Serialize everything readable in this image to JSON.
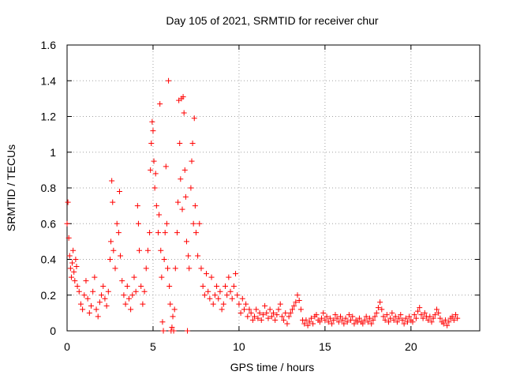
{
  "chart_data": {
    "type": "scatter",
    "title": "Day 105 of 2021, SRMTID for receiver chur",
    "xlabel": "GPS time / hours",
    "ylabel": "SRMTID / TECUs",
    "xlim": [
      0,
      24
    ],
    "ylim": [
      0,
      1.6
    ],
    "x_ticks": [
      0,
      5,
      10,
      15,
      20
    ],
    "x_tick_labels": [
      "0",
      "5",
      "10",
      "15",
      "20"
    ],
    "y_ticks": [
      0,
      0.2,
      0.4,
      0.6,
      0.8,
      1,
      1.2,
      1.4,
      1.6
    ],
    "y_tick_labels": [
      "0",
      "0.2",
      "0.4",
      "0.6",
      "0.8",
      "1",
      "1.2",
      "1.4",
      "1.6"
    ],
    "grid": true,
    "marker": "plus",
    "color": "#ff0000",
    "series": [
      {
        "name": "SRMTID",
        "points": [
          [
            0.0,
            0.6
          ],
          [
            0.05,
            0.72
          ],
          [
            0.1,
            0.52
          ],
          [
            0.15,
            0.42
          ],
          [
            0.2,
            0.35
          ],
          [
            0.25,
            0.3
          ],
          [
            0.3,
            0.38
          ],
          [
            0.35,
            0.45
          ],
          [
            0.4,
            0.33
          ],
          [
            0.45,
            0.28
          ],
          [
            0.5,
            0.4
          ],
          [
            0.55,
            0.36
          ],
          [
            0.6,
            0.25
          ],
          [
            0.7,
            0.22
          ],
          [
            0.8,
            0.15
          ],
          [
            0.9,
            0.12
          ],
          [
            1.0,
            0.2
          ],
          [
            1.1,
            0.28
          ],
          [
            1.2,
            0.18
          ],
          [
            1.3,
            0.1
          ],
          [
            1.4,
            0.14
          ],
          [
            1.5,
            0.22
          ],
          [
            1.6,
            0.3
          ],
          [
            1.7,
            0.12
          ],
          [
            1.8,
            0.08
          ],
          [
            1.9,
            0.16
          ],
          [
            2.0,
            0.2
          ],
          [
            2.1,
            0.25
          ],
          [
            2.2,
            0.18
          ],
          [
            2.3,
            0.14
          ],
          [
            2.4,
            0.22
          ],
          [
            2.5,
            0.4
          ],
          [
            2.55,
            0.5
          ],
          [
            2.6,
            0.84
          ],
          [
            2.65,
            0.72
          ],
          [
            2.7,
            0.45
          ],
          [
            2.8,
            0.35
          ],
          [
            2.9,
            0.6
          ],
          [
            3.0,
            0.55
          ],
          [
            3.05,
            0.78
          ],
          [
            3.1,
            0.42
          ],
          [
            3.2,
            0.28
          ],
          [
            3.3,
            0.2
          ],
          [
            3.4,
            0.15
          ],
          [
            3.5,
            0.25
          ],
          [
            3.6,
            0.18
          ],
          [
            3.7,
            0.12
          ],
          [
            3.8,
            0.2
          ],
          [
            3.9,
            0.3
          ],
          [
            4.0,
            0.22
          ],
          [
            4.1,
            0.7
          ],
          [
            4.15,
            0.6
          ],
          [
            4.2,
            0.45
          ],
          [
            4.3,
            0.25
          ],
          [
            4.4,
            0.15
          ],
          [
            4.5,
            0.22
          ],
          [
            4.6,
            0.35
          ],
          [
            4.7,
            0.45
          ],
          [
            4.8,
            0.55
          ],
          [
            4.85,
            0.9
          ],
          [
            4.9,
            1.05
          ],
          [
            4.95,
            1.17
          ],
          [
            5.0,
            1.12
          ],
          [
            5.05,
            0.95
          ],
          [
            5.1,
            0.8
          ],
          [
            5.15,
            0.88
          ],
          [
            5.2,
            0.7
          ],
          [
            5.3,
            0.55
          ],
          [
            5.35,
            0.65
          ],
          [
            5.4,
            1.27
          ],
          [
            5.45,
            0.45
          ],
          [
            5.5,
            0.3
          ],
          [
            5.55,
            0.05
          ],
          [
            5.6,
            0.0
          ],
          [
            5.65,
            0.4
          ],
          [
            5.7,
            0.55
          ],
          [
            5.75,
            0.92
          ],
          [
            5.8,
            0.6
          ],
          [
            5.85,
            0.35
          ],
          [
            5.9,
            1.4
          ],
          [
            5.95,
            0.25
          ],
          [
            6.0,
            0.15
          ],
          [
            6.05,
            0.0
          ],
          [
            6.1,
            0.02
          ],
          [
            6.15,
            0.08
          ],
          [
            6.2,
            0.0
          ],
          [
            6.25,
            0.12
          ],
          [
            6.3,
            0.35
          ],
          [
            6.4,
            0.55
          ],
          [
            6.45,
            0.72
          ],
          [
            6.5,
            1.29
          ],
          [
            6.55,
            1.05
          ],
          [
            6.6,
            0.85
          ],
          [
            6.65,
            1.3
          ],
          [
            6.7,
            0.68
          ],
          [
            6.75,
            1.31
          ],
          [
            6.8,
            1.22
          ],
          [
            6.85,
            0.9
          ],
          [
            6.9,
            0.75
          ],
          [
            6.95,
            0.5
          ],
          [
            7.0,
            0.0
          ],
          [
            7.05,
            0.42
          ],
          [
            7.1,
            0.35
          ],
          [
            7.2,
            0.8
          ],
          [
            7.25,
            0.95
          ],
          [
            7.3,
            1.05
          ],
          [
            7.35,
            0.6
          ],
          [
            7.4,
            1.19
          ],
          [
            7.45,
            0.7
          ],
          [
            7.5,
            0.55
          ],
          [
            7.6,
            0.42
          ],
          [
            7.7,
            0.6
          ],
          [
            7.8,
            0.35
          ],
          [
            7.9,
            0.25
          ],
          [
            8.0,
            0.2
          ],
          [
            8.1,
            0.32
          ],
          [
            8.2,
            0.22
          ],
          [
            8.3,
            0.18
          ],
          [
            8.4,
            0.3
          ],
          [
            8.5,
            0.15
          ],
          [
            8.6,
            0.2
          ],
          [
            8.7,
            0.25
          ],
          [
            8.8,
            0.18
          ],
          [
            8.9,
            0.22
          ],
          [
            9.0,
            0.12
          ],
          [
            9.1,
            0.15
          ],
          [
            9.2,
            0.25
          ],
          [
            9.3,
            0.2
          ],
          [
            9.4,
            0.3
          ],
          [
            9.5,
            0.22
          ],
          [
            9.6,
            0.18
          ],
          [
            9.7,
            0.25
          ],
          [
            9.8,
            0.32
          ],
          [
            9.9,
            0.2
          ],
          [
            10.0,
            0.15
          ],
          [
            10.1,
            0.1
          ],
          [
            10.2,
            0.18
          ],
          [
            10.3,
            0.12
          ],
          [
            10.4,
            0.15
          ],
          [
            10.5,
            0.08
          ],
          [
            10.6,
            0.12
          ],
          [
            10.7,
            0.1
          ],
          [
            10.8,
            0.06
          ],
          [
            10.9,
            0.08
          ],
          [
            11.0,
            0.12
          ],
          [
            11.1,
            0.07
          ],
          [
            11.2,
            0.1
          ],
          [
            11.3,
            0.06
          ],
          [
            11.4,
            0.09
          ],
          [
            11.5,
            0.14
          ],
          [
            11.6,
            0.1
          ],
          [
            11.7,
            0.07
          ],
          [
            11.8,
            0.12
          ],
          [
            11.9,
            0.08
          ],
          [
            12.0,
            0.1
          ],
          [
            12.1,
            0.06
          ],
          [
            12.2,
            0.09
          ],
          [
            12.3,
            0.12
          ],
          [
            12.4,
            0.15
          ],
          [
            12.5,
            0.08
          ],
          [
            12.6,
            0.06
          ],
          [
            12.7,
            0.1
          ],
          [
            12.8,
            0.04
          ],
          [
            12.9,
            0.08
          ],
          [
            13.0,
            0.1
          ],
          [
            13.1,
            0.12
          ],
          [
            13.2,
            0.14
          ],
          [
            13.3,
            0.16
          ],
          [
            13.4,
            0.2
          ],
          [
            13.5,
            0.17
          ],
          [
            13.6,
            0.12
          ],
          [
            13.7,
            0.06
          ],
          [
            13.8,
            0.04
          ],
          [
            13.9,
            0.06
          ],
          [
            14.0,
            0.03
          ],
          [
            14.1,
            0.05
          ],
          [
            14.2,
            0.07
          ],
          [
            14.3,
            0.04
          ],
          [
            14.4,
            0.08
          ],
          [
            14.5,
            0.09
          ],
          [
            14.6,
            0.06
          ],
          [
            14.7,
            0.05
          ],
          [
            14.8,
            0.07
          ],
          [
            14.9,
            0.1
          ],
          [
            15.0,
            0.06
          ],
          [
            15.1,
            0.08
          ],
          [
            15.2,
            0.05
          ],
          [
            15.3,
            0.07
          ],
          [
            15.4,
            0.04
          ],
          [
            15.5,
            0.06
          ],
          [
            15.6,
            0.09
          ],
          [
            15.7,
            0.07
          ],
          [
            15.8,
            0.05
          ],
          [
            15.9,
            0.08
          ],
          [
            16.0,
            0.06
          ],
          [
            16.1,
            0.04
          ],
          [
            16.2,
            0.07
          ],
          [
            16.3,
            0.05
          ],
          [
            16.4,
            0.09
          ],
          [
            16.5,
            0.06
          ],
          [
            16.6,
            0.08
          ],
          [
            16.7,
            0.04
          ],
          [
            16.8,
            0.06
          ],
          [
            16.9,
            0.05
          ],
          [
            17.0,
            0.07
          ],
          [
            17.1,
            0.05
          ],
          [
            17.2,
            0.04
          ],
          [
            17.3,
            0.06
          ],
          [
            17.4,
            0.08
          ],
          [
            17.5,
            0.05
          ],
          [
            17.6,
            0.07
          ],
          [
            17.7,
            0.04
          ],
          [
            17.8,
            0.06
          ],
          [
            17.9,
            0.08
          ],
          [
            18.0,
            0.1
          ],
          [
            18.1,
            0.13
          ],
          [
            18.2,
            0.16
          ],
          [
            18.3,
            0.12
          ],
          [
            18.4,
            0.08
          ],
          [
            18.5,
            0.06
          ],
          [
            18.6,
            0.09
          ],
          [
            18.7,
            0.05
          ],
          [
            18.8,
            0.07
          ],
          [
            18.9,
            0.1
          ],
          [
            19.0,
            0.06
          ],
          [
            19.1,
            0.08
          ],
          [
            19.2,
            0.05
          ],
          [
            19.3,
            0.07
          ],
          [
            19.4,
            0.09
          ],
          [
            19.5,
            0.06
          ],
          [
            19.6,
            0.04
          ],
          [
            19.7,
            0.07
          ],
          [
            19.8,
            0.05
          ],
          [
            19.9,
            0.08
          ],
          [
            20.0,
            0.06
          ],
          [
            20.1,
            0.05
          ],
          [
            20.2,
            0.09
          ],
          [
            20.3,
            0.07
          ],
          [
            20.4,
            0.11
          ],
          [
            20.5,
            0.13
          ],
          [
            20.6,
            0.09
          ],
          [
            20.7,
            0.07
          ],
          [
            20.8,
            0.1
          ],
          [
            20.9,
            0.08
          ],
          [
            21.0,
            0.06
          ],
          [
            21.1,
            0.08
          ],
          [
            21.2,
            0.05
          ],
          [
            21.3,
            0.07
          ],
          [
            21.4,
            0.09
          ],
          [
            21.5,
            0.12
          ],
          [
            21.6,
            0.1
          ],
          [
            21.7,
            0.07
          ],
          [
            21.8,
            0.05
          ],
          [
            21.9,
            0.04
          ],
          [
            22.0,
            0.06
          ],
          [
            22.1,
            0.03
          ],
          [
            22.2,
            0.05
          ],
          [
            22.3,
            0.07
          ],
          [
            22.4,
            0.08
          ],
          [
            22.5,
            0.06
          ],
          [
            22.6,
            0.09
          ],
          [
            22.7,
            0.07
          ]
        ]
      }
    ]
  }
}
